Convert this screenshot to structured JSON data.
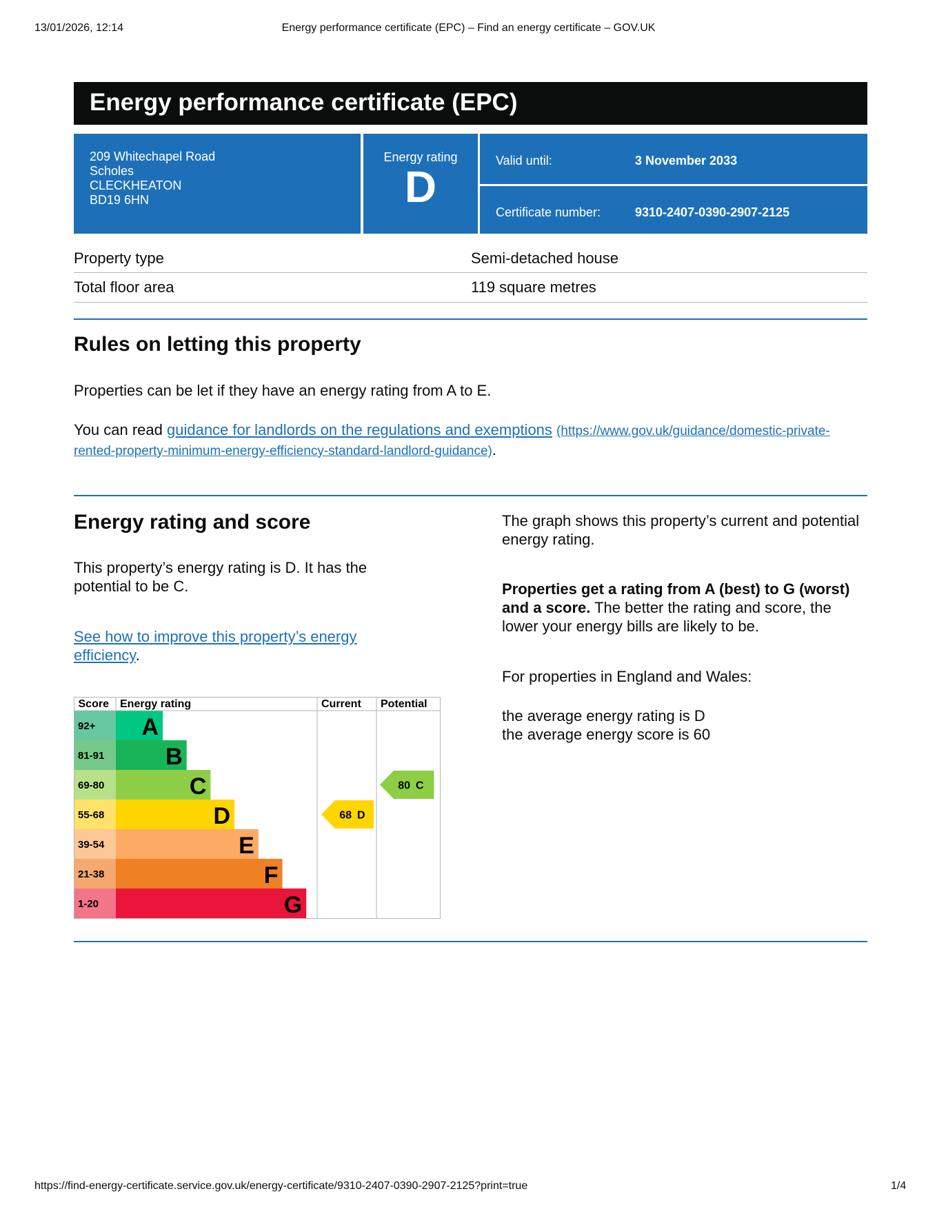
{
  "browser_header": {
    "datetime": "13/01/2026, 12:14",
    "page_title": "Energy performance certificate (EPC) – Find an energy certificate – GOV.UK"
  },
  "title": "Energy performance certificate (EPC)",
  "address": [
    "209 Whitechapel Road",
    "Scholes",
    "CLECKHEATON",
    "BD19 6HN"
  ],
  "energy_rating": {
    "label": "Energy rating",
    "value": "D"
  },
  "valid_until": {
    "label": "Valid until:",
    "value": "3 November 2033"
  },
  "certificate_number": {
    "label": "Certificate number:",
    "value": "9310-2407-0390-2907-2125"
  },
  "property_table": {
    "rows": [
      [
        "Property type",
        "Semi-detached house"
      ],
      [
        "Total floor area",
        "119 square metres"
      ]
    ]
  },
  "rules": {
    "heading": "Rules on letting this property",
    "paragraph": "Properties can be let if they have an energy rating from A to E.",
    "link_prefix": "You can read",
    "link_text": "guidance for landlords on the regulations and exemptions",
    "link_url": "(https://www.gov.uk/guidance/domestic-private-rented-property-minimum-energy-efficiency-standard-landlord-guidance)",
    "link_suffix": "."
  },
  "energy_section": {
    "heading": "Energy rating and score",
    "summary": "This property’s energy rating is D. It has the potential to be C.",
    "improve_link": "See how to improve this property’s energy efficiency",
    "improve_suffix": ".",
    "graph_intro": "The graph shows this property’s current and potential energy rating.",
    "bold_text": "Properties get a rating from A (best) to G (worst) and a score.",
    "rest_text": "The better the rating and score, the lower your energy bills are likely to be.",
    "england_wales": "For properties in England and Wales:",
    "average_rating": "the average energy rating is D",
    "average_score": "the average energy score is 60"
  },
  "graph": {
    "headers": [
      "Score",
      "Energy rating",
      "Current",
      "Potential"
    ],
    "bands": [
      {
        "range": "92+",
        "letter": "A",
        "color": "#00c781",
        "light": "#66c7a1"
      },
      {
        "range": "81-91",
        "letter": "B",
        "color": "#19b459",
        "light": "#75c98a"
      },
      {
        "range": "69-80",
        "letter": "C",
        "color": "#8dce46",
        "light": "#b7e08a"
      },
      {
        "range": "55-68",
        "letter": "D",
        "color": "#ffd500",
        "light": "#ffe26a"
      },
      {
        "range": "39-54",
        "letter": "E",
        "color": "#fcaa65",
        "light": "#fdc796"
      },
      {
        "range": "21-38",
        "letter": "F",
        "color": "#ef8023",
        "light": "#f5a870"
      },
      {
        "range": "1-20",
        "letter": "G",
        "color": "#e9153b",
        "light": "#f27588"
      }
    ],
    "current": {
      "score": 68,
      "letter": "D"
    },
    "potential": {
      "score": 80,
      "letter": "C"
    }
  },
  "footer": {
    "url": "https://find-energy-certificate.service.gov.uk/energy-certificate/9310-2407-0390-2907-2125?print=true",
    "page": "1/4"
  }
}
